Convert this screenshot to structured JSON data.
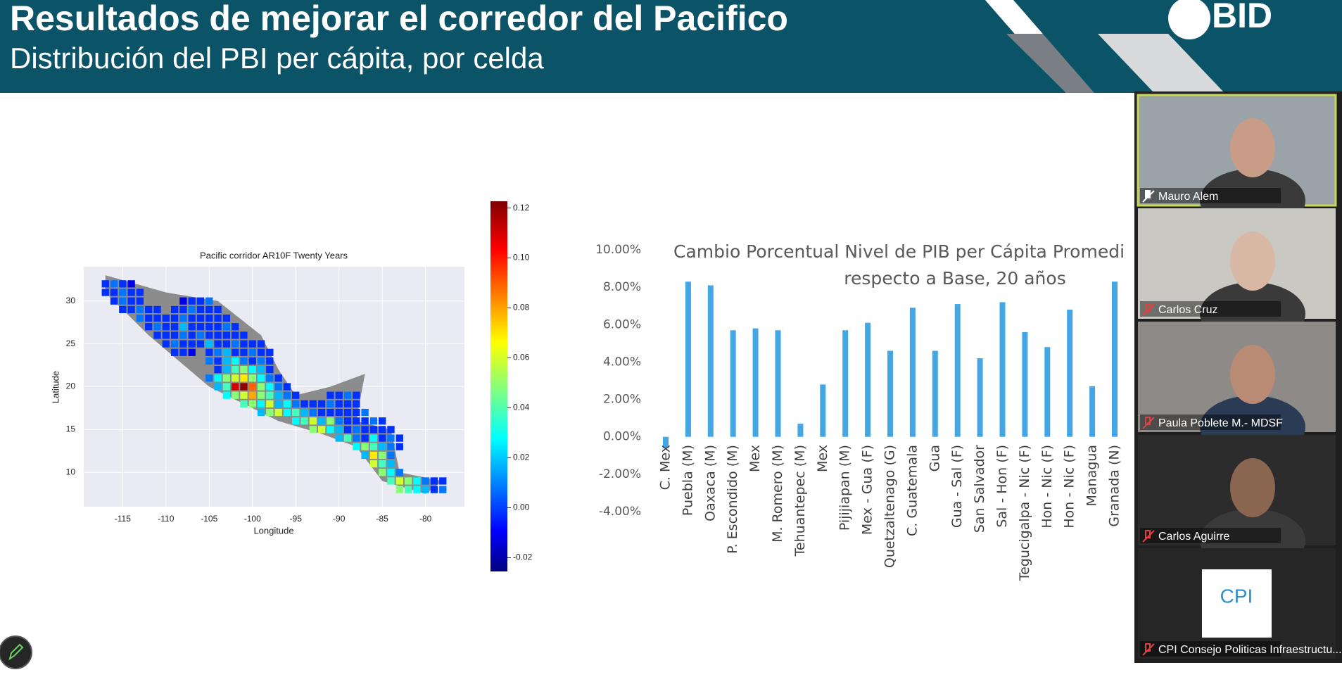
{
  "header": {
    "title": "Resultados de mejorar el corredor del Pacifico",
    "subtitle": "Distribución del PBI per cápita, por celda",
    "logo": "BID"
  },
  "heatmap": {
    "type": "heatmap",
    "title": "Pacific corridor AR10F Twenty Years",
    "x_label": "Longitude",
    "y_label": "Latitude",
    "xlim": [
      -119.5,
      -75.5
    ],
    "ylim": [
      6,
      34
    ],
    "xticks": [
      -115,
      -110,
      -105,
      -100,
      -95,
      -90,
      -85,
      -80
    ],
    "yticks": [
      10,
      15,
      20,
      25,
      30
    ],
    "clim": [
      -0.0255,
      0.1227
    ],
    "colormap": "jet",
    "cticks": [
      -0.02,
      {
        "value": 0,
        "label": "0.00"
      },
      0.02,
      0.04,
      0.06,
      0.08,
      {
        "value": 0.1,
        "label": "0.10"
      },
      0.12
    ],
    "rows": [
      {
        "lat": 32,
        "lon0": -117,
        "values": [
          0,
          0.01,
          0,
          -0.01
        ]
      },
      {
        "lat": 31,
        "lon0": -117,
        "values": [
          0,
          0,
          0.01,
          0,
          0
        ]
      },
      {
        "lat": 30,
        "lon0": -116,
        "values": [
          0,
          0.01,
          0,
          0,
          null,
          null,
          null,
          null,
          -0.01,
          0,
          0,
          0.01
        ]
      },
      {
        "lat": 29,
        "lon0": -115,
        "values": [
          0,
          0,
          0.01,
          0,
          0,
          null,
          0,
          0,
          0.01,
          0,
          0,
          0
        ]
      },
      {
        "lat": 28,
        "lon0": -113,
        "values": [
          0.01,
          0,
          0,
          0,
          0,
          0.01,
          0,
          0,
          0,
          0,
          0
        ]
      },
      {
        "lat": 27,
        "lon0": -112,
        "values": [
          0,
          0.01,
          0,
          0,
          0.02,
          0,
          0,
          0,
          0,
          0.01,
          0
        ]
      },
      {
        "lat": 26,
        "lon0": -111,
        "values": [
          0,
          0,
          0,
          0.01,
          0,
          0.01,
          0,
          0,
          0,
          0,
          0
        ]
      },
      {
        "lat": 25,
        "lon0": -110,
        "values": [
          0,
          0.01,
          0,
          0,
          0,
          0.02,
          0,
          0,
          0.01,
          0,
          0,
          0
        ]
      },
      {
        "lat": 24,
        "lon0": -109,
        "values": [
          0,
          0,
          -0.01,
          null,
          0,
          0.01,
          0.02,
          0,
          0,
          0.01,
          0,
          0
        ]
      },
      {
        "lat": 23,
        "lon0": -105,
        "values": [
          0.01,
          0,
          0.02,
          0.03,
          0.01,
          0,
          0.01,
          0
        ]
      },
      {
        "lat": 22,
        "lon0": -104,
        "values": [
          0,
          0.02,
          0.04,
          0.05,
          0.03,
          0.02,
          0
        ]
      },
      {
        "lat": 21,
        "lon0": -105,
        "values": [
          0.01,
          0.03,
          0.05,
          0.06,
          0.07,
          0.05,
          0.03,
          0.01,
          0
        ]
      },
      {
        "lat": 20,
        "lon0": -104,
        "values": [
          0.02,
          0.04,
          0.11,
          0.12,
          0.09,
          0.05,
          0.03,
          0.01,
          0
        ]
      },
      {
        "lat": 19,
        "lon0": -103,
        "values": [
          0.03,
          0.05,
          0.06,
          0.08,
          0.05,
          0.04,
          0.02,
          0.01,
          0,
          null,
          null,
          null,
          0,
          0,
          0.01,
          0
        ]
      },
      {
        "lat": 18,
        "lon0": -101,
        "values": [
          0.04,
          0.05,
          0.03,
          0.06,
          0.02,
          0.03,
          0.01,
          0,
          0,
          0,
          0.01,
          0,
          0,
          0
        ]
      },
      {
        "lat": 17,
        "lon0": -99,
        "values": [
          0.02,
          0.05,
          0.06,
          0.03,
          0.04,
          0.02,
          0.01,
          0,
          0,
          0,
          0,
          0,
          0.01
        ]
      },
      {
        "lat": 16,
        "lon0": -95,
        "values": [
          0.03,
          0.04,
          0.06,
          0.02,
          0.05,
          0.01,
          0,
          0,
          0,
          0.01,
          0
        ]
      },
      {
        "lat": 15,
        "lon0": -93,
        "values": [
          0.05,
          0.06,
          0.03,
          0.02,
          0,
          0.01,
          0,
          0,
          0,
          0
        ]
      },
      {
        "lat": 14,
        "lon0": -90,
        "values": [
          0.02,
          0.04,
          0.01,
          0,
          0.03,
          0,
          0.01,
          0
        ]
      },
      {
        "lat": 13,
        "lon0": -88,
        "values": [
          0.03,
          0.05,
          0.04,
          0.02,
          0.01,
          0
        ]
      },
      {
        "lat": 12,
        "lon0": -87,
        "values": [
          0.02,
          0.07,
          0.05,
          0.01
        ]
      },
      {
        "lat": 11,
        "lon0": -86,
        "values": [
          0.06,
          0.04,
          0.02
        ]
      },
      {
        "lat": 10,
        "lon0": -85,
        "values": [
          0.05,
          0.03,
          0.01
        ]
      },
      {
        "lat": 9,
        "lon0": -84,
        "values": [
          0.04,
          0.06,
          0.05,
          0.03,
          0.01,
          0,
          0
        ]
      },
      {
        "lat": 8,
        "lon0": -83,
        "values": [
          0.05,
          0.04,
          0.03,
          0.02,
          0,
          0.01
        ]
      }
    ]
  },
  "bar_chart": {
    "type": "bar",
    "title_lines": [
      "Cambio Porcentual Nivel de PIB per Cápita Promedi",
      "respecto a Base, 20 años"
    ],
    "categories": [
      "C. Mex",
      "Puebla (M)",
      "Oaxaca (M)",
      "P. Escondido (M)",
      "Mex",
      "M. Romero (M)",
      "Tehuantepec (M)",
      "Mex",
      "Pijijiapan (M)",
      "Mex - Gua (F)",
      "Quetzaltenago (G)",
      "C. Guatemala",
      "Gua",
      "Gua - Sal (F)",
      "San Salvador",
      "Sal - Hon (F)",
      "Tegucigalpa - Nic (F)",
      "Hon - Nic (F)",
      "Hon - Nic (F)",
      "Managua",
      "Granada (N)"
    ],
    "values": [
      -0.6,
      8.3,
      8.1,
      5.7,
      5.8,
      5.7,
      0.7,
      2.8,
      5.7,
      6.1,
      4.6,
      6.9,
      4.6,
      7.1,
      4.2,
      7.2,
      5.6,
      4.8,
      6.8,
      2.7,
      8.3
    ],
    "color": "#45a6e6",
    "ylim": [
      -4,
      10
    ],
    "yticks": [
      {
        "value": -4,
        "label": "-4.00%"
      },
      {
        "value": -2,
        "label": "-2.00%"
      },
      {
        "value": 0,
        "label": "0.00%"
      },
      {
        "value": 2,
        "label": "2.00%"
      },
      {
        "value": 4,
        "label": "4.00%"
      },
      {
        "value": 6,
        "label": "6.00%"
      },
      {
        "value": 8,
        "label": "8.00%"
      },
      {
        "value": 10,
        "label": "10.00%"
      }
    ]
  },
  "participants": [
    {
      "name": "Mauro Alem"
    },
    {
      "name": "Carlos Cruz"
    },
    {
      "name": "Paula Poblete M.- MDSF"
    },
    {
      "name": "Carlos Aguirre"
    },
    {
      "name": "CPI Consejo Politicas Infraestructu..."
    }
  ],
  "cpi_logo": "CPI"
}
